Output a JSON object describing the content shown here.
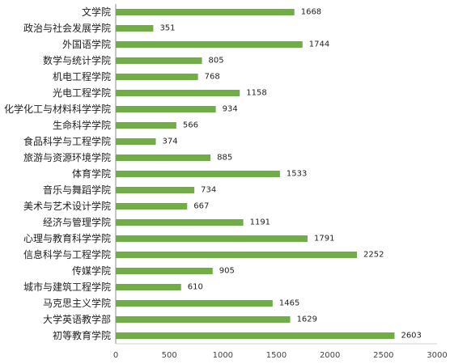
{
  "chart_data": {
    "type": "bar",
    "orientation": "horizontal",
    "title": "",
    "xlabel": "",
    "ylabel": "",
    "xlim": [
      0,
      3000
    ],
    "xticks": [
      0,
      500,
      1000,
      1500,
      2000,
      2500,
      3000
    ],
    "grid": false,
    "legend": "none",
    "bar_color": "#70ad47",
    "categories": [
      "文学院",
      "政治与社会发展学院",
      "外国语学院",
      "数学与统计学院",
      "机电工程学院",
      "光电工程学院",
      "化学化工与材料科学学院",
      "生命科学学院",
      "食品科学与工程学院",
      "旅游与资源环境学院",
      "体育学院",
      "音乐与舞蹈学院",
      "美术与艺术设计学院",
      "经济与管理学院",
      "心理与教育科学学院",
      "信息科学与工程学院",
      "传媒学院",
      "城市与建筑工程学院",
      "马克思主义学院",
      "大学英语教学部",
      "初等教育学院"
    ],
    "values": [
      1668,
      351,
      1744,
      805,
      768,
      1158,
      934,
      566,
      374,
      885,
      1533,
      734,
      667,
      1191,
      1791,
      2252,
      905,
      610,
      1465,
      1629,
      2603
    ]
  }
}
